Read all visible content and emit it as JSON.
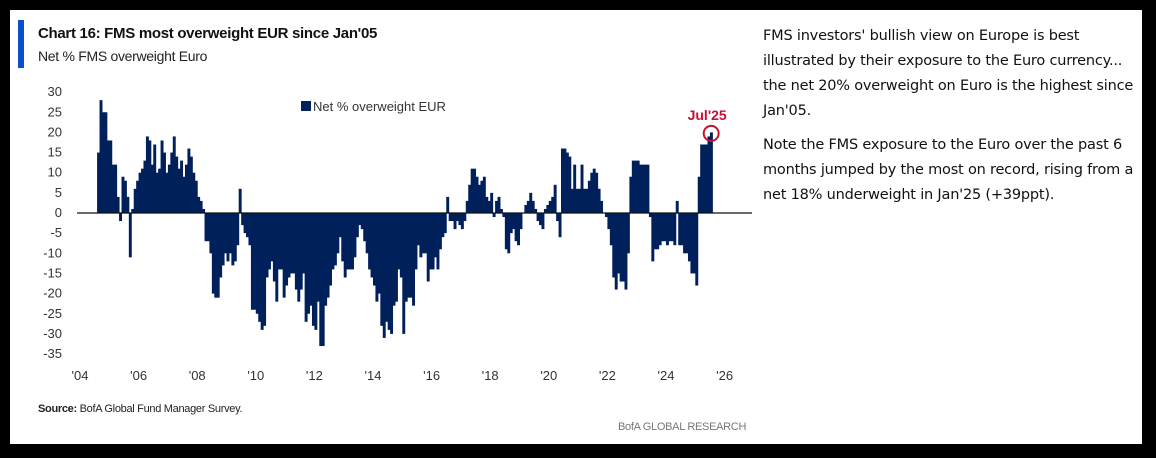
{
  "header": {
    "title": "Chart 16: FMS most overweight EUR since Jan'05",
    "subtitle": "Net % FMS overweight Euro"
  },
  "commentary": [
    "FMS investors' bullish view on Europe is best illustrated by their exposure to the Euro currency... the net 20% overweight on Euro is the highest since Jan'05.",
    "Note the FMS exposure to the Euro over the past 6 months jumped by the most on record, rising from a net 18% underweight in Jan'25 (+39ppt)."
  ],
  "footer": {
    "source_label": "Source:",
    "source_text": " BofA Global Fund Manager Survey.",
    "brand": "BofA GLOBAL RESEARCH"
  },
  "colors": {
    "bar": "#00205b",
    "accent": "#0b4fcf",
    "annotation": "#c8102e"
  },
  "chart_data": {
    "type": "bar",
    "title": "Chart 16: FMS most overweight EUR since Jan'05",
    "subtitle": "Net % FMS overweight Euro",
    "xlabel": "",
    "ylabel": "",
    "ylim": [
      -35,
      30
    ],
    "yticks": [
      30,
      25,
      20,
      15,
      10,
      5,
      0,
      -5,
      -10,
      -15,
      -20,
      -25,
      -30,
      -35
    ],
    "xlim": [
      2004,
      2026.5
    ],
    "xticks": [
      {
        "year": 2004,
        "label": "'04"
      },
      {
        "year": 2006,
        "label": "'06"
      },
      {
        "year": 2008,
        "label": "'08"
      },
      {
        "year": 2010,
        "label": "'10"
      },
      {
        "year": 2012,
        "label": "'12"
      },
      {
        "year": 2014,
        "label": "'14"
      },
      {
        "year": 2016,
        "label": "'16"
      },
      {
        "year": 2018,
        "label": "'18"
      },
      {
        "year": 2020,
        "label": "'20"
      },
      {
        "year": 2022,
        "label": "'22"
      },
      {
        "year": 2024,
        "label": "'24"
      },
      {
        "year": 2026,
        "label": "'26"
      }
    ],
    "grid": false,
    "legend": {
      "position": "top-center",
      "entries": [
        "Net % overweight EUR"
      ]
    },
    "annotation": {
      "label": "Jul'25",
      "date": "2025-07",
      "value": 20
    },
    "series": [
      {
        "name": "Net % overweight EUR",
        "start": "2004-08",
        "frequency": "monthly",
        "values": [
          15,
          28,
          25,
          25,
          18,
          18,
          12,
          12,
          4,
          -2,
          9,
          8,
          4,
          -11,
          1,
          6,
          8,
          10,
          11,
          13,
          19,
          18,
          12,
          17,
          10,
          11,
          18,
          15,
          10,
          12,
          15,
          19,
          14,
          11,
          13,
          9,
          12,
          16,
          14,
          10,
          8,
          4,
          3,
          1,
          -7,
          -7,
          -10,
          -20,
          -21,
          -21,
          -16,
          -13,
          -10,
          -12,
          -10,
          -13,
          -12,
          -8,
          6,
          -3,
          -5,
          -6,
          -8,
          -24,
          -24,
          -25,
          -27,
          -29,
          -28,
          -16,
          -14,
          -12,
          -17,
          -22,
          -14,
          -14,
          -21,
          -18,
          -16,
          -15,
          -15,
          -19,
          -22,
          -19,
          -15,
          -27,
          -25,
          -23,
          -28,
          -29,
          -22,
          -33,
          -33,
          -23,
          -21,
          -18,
          -14,
          -13,
          -10,
          -6,
          -12,
          -16,
          -14,
          -14,
          -14,
          -11,
          -6,
          -3,
          -4,
          -7,
          -10,
          -14,
          -16,
          -18,
          -22,
          -20,
          -28,
          -31,
          -27,
          -29,
          -30,
          -23,
          -22,
          -14,
          -16,
          -30,
          -22,
          -21,
          -21,
          -23,
          -14,
          -8,
          -11,
          -10,
          -10,
          -17,
          -14,
          -14,
          -11,
          -14,
          -9,
          -6,
          -5,
          4,
          -2,
          -2,
          -4,
          -2,
          -3,
          -4,
          -2,
          3,
          7,
          11,
          11,
          9,
          7,
          8,
          9,
          4,
          3,
          5,
          -1,
          3,
          4,
          1,
          -1,
          -9,
          -10,
          -5,
          -4,
          -7,
          -8,
          -4,
          0,
          2,
          3,
          5,
          3,
          1,
          -2,
          -3,
          -4,
          1,
          2,
          3,
          4,
          7,
          -2,
          -6,
          16,
          16,
          15,
          14,
          6,
          12,
          6,
          6,
          12,
          6,
          6,
          8,
          10,
          11,
          10,
          6,
          3,
          0,
          -1,
          -4,
          -8,
          -16,
          -19,
          -15,
          -17,
          -17,
          -19,
          -10,
          9,
          13,
          13,
          13,
          12,
          12,
          12,
          12,
          -1,
          -12,
          -9,
          -9,
          -8,
          -7,
          -7,
          -8,
          -7,
          -7,
          -8,
          3,
          -8,
          -8,
          -10,
          -10,
          -12,
          -15,
          -15,
          -18,
          9,
          17,
          17,
          17,
          19,
          20
        ]
      }
    ]
  }
}
